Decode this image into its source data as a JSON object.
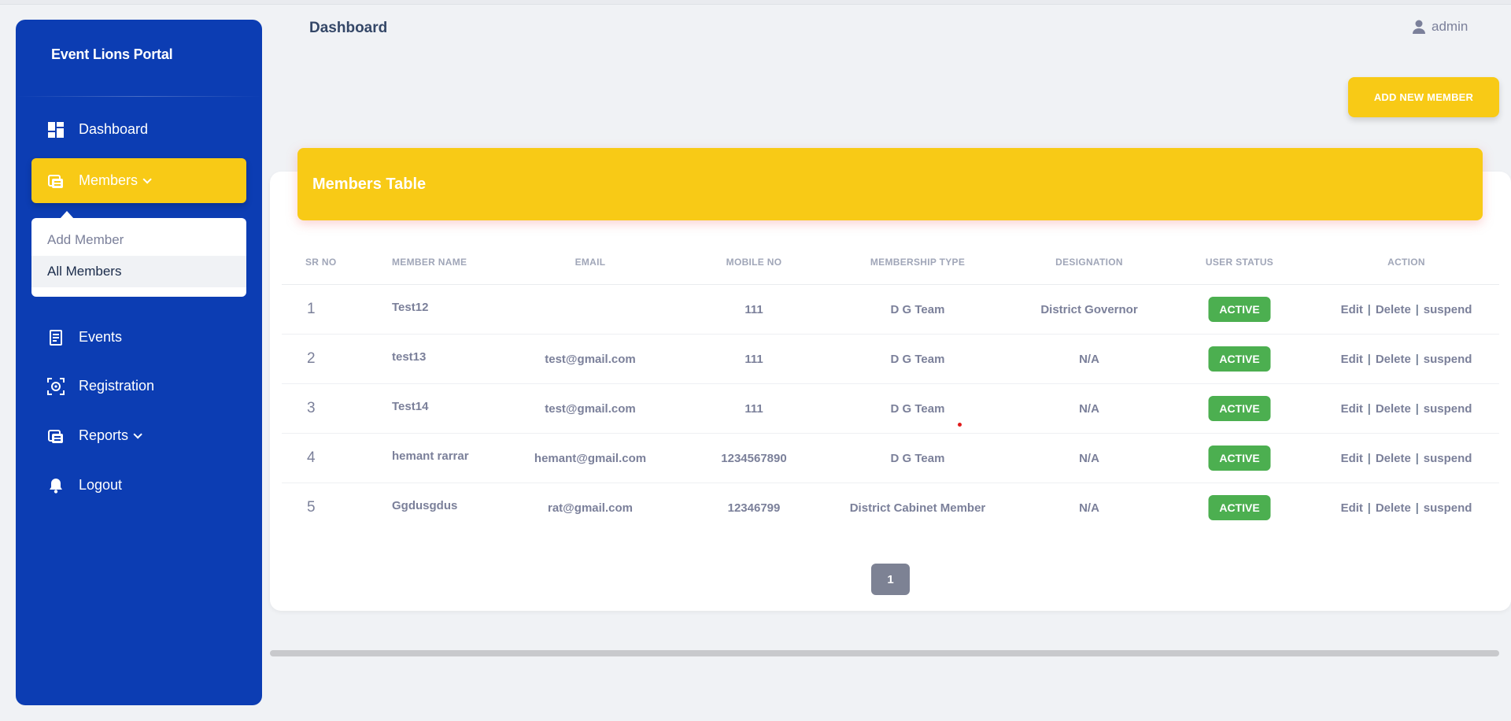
{
  "sidebar": {
    "brand": "Event Lions Portal",
    "items": [
      {
        "label": "Dashboard",
        "icon": "dashboard-icon"
      },
      {
        "label": "Members",
        "icon": "members-icon"
      },
      {
        "label": "Events",
        "icon": "events-icon"
      },
      {
        "label": "Registration",
        "icon": "registration-icon"
      },
      {
        "label": "Reports",
        "icon": "reports-icon"
      },
      {
        "label": "Logout",
        "icon": "bell-icon"
      }
    ],
    "submenu": [
      "Add Member",
      "All Members"
    ],
    "accent": "#f8ca16",
    "background": "#0c3db3"
  },
  "header": {
    "title": "Dashboard",
    "user": "admin"
  },
  "add_button": "ADD NEW MEMBER",
  "table": {
    "title": "Members Table",
    "columns": [
      "SR NO",
      "MEMBER NAME",
      "EMAIL",
      "MOBILE NO",
      "MEMBERSHIP TYPE",
      "DESIGNATION",
      "USER STATUS",
      "ACTION"
    ],
    "rows": [
      {
        "sr": "1",
        "name": "Test12",
        "email": "",
        "mobile": "111",
        "type": "D G Team",
        "designation": "District Governor",
        "status": "ACTIVE"
      },
      {
        "sr": "2",
        "name": "test13",
        "email": "test@gmail.com",
        "mobile": "111",
        "type": "D G Team",
        "designation": "N/A",
        "status": "ACTIVE"
      },
      {
        "sr": "3",
        "name": "Test14",
        "email": "test@gmail.com",
        "mobile": "111",
        "type": "D G Team",
        "designation": "N/A",
        "status": "ACTIVE"
      },
      {
        "sr": "4",
        "name": "hemant rarrar",
        "email": "hemant@gmail.com",
        "mobile": "1234567890",
        "type": "D G Team",
        "designation": "N/A",
        "status": "ACTIVE"
      },
      {
        "sr": "5",
        "name": "Ggdusgdus",
        "email": "rat@gmail.com",
        "mobile": "12346799",
        "type": "District Cabinet Member",
        "designation": "N/A",
        "status": "ACTIVE"
      }
    ],
    "actions": {
      "edit": "Edit",
      "delete": "Delete",
      "suspend": "suspend",
      "separator": "|"
    },
    "status_color": "#4caf50"
  },
  "pagination": {
    "current": "1"
  }
}
